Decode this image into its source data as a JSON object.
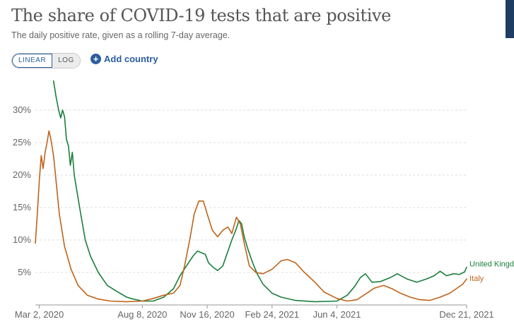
{
  "header": {
    "title": "The share of COVID-19 tests that are positive",
    "subtitle": "The daily positive rate, given as a rolling 7-day average."
  },
  "controls": {
    "linear_label": "LINEAR",
    "log_label": "LOG",
    "active_scale": "linear",
    "add_country_label": "Add country",
    "add_country_icon": "plus-circle-icon"
  },
  "colors": {
    "uk": "#1a7f3c",
    "italy": "#c0631a",
    "grid": "#dddddd",
    "accent": "#2a5e9e"
  },
  "chart_data": {
    "type": "line",
    "title": "The share of COVID-19 tests that are positive",
    "subtitle": "The daily positive rate, given as a rolling 7-day average.",
    "xlabel": "",
    "ylabel": "",
    "x_range": [
      "2020-02-25",
      "2021-12-21"
    ],
    "ylim": [
      0,
      35
    ],
    "y_ticks": [
      5,
      10,
      15,
      20,
      25,
      30
    ],
    "y_tick_labels": [
      "5%",
      "10%",
      "15%",
      "20%",
      "25%",
      "30%"
    ],
    "x_ticks": [
      "2020-03-02",
      "2020-08-08",
      "2020-11-16",
      "2021-02-24",
      "2021-06-04",
      "2021-12-21"
    ],
    "x_tick_labels": [
      "Mar 2, 2020",
      "Aug 8, 2020",
      "Nov 16, 2020",
      "Feb 24, 2021",
      "Jun 4, 2021",
      "Dec 21, 2021"
    ],
    "grid": true,
    "legend": "right-end labels",
    "series": [
      {
        "name": "United Kingdom",
        "color": "#1a7f3c",
        "points": [
          [
            "2020-03-24",
            34.5
          ],
          [
            "2020-03-28",
            32.0
          ],
          [
            "2020-04-01",
            30.0
          ],
          [
            "2020-04-04",
            28.8
          ],
          [
            "2020-04-07",
            30.0
          ],
          [
            "2020-04-10",
            29.0
          ],
          [
            "2020-04-13",
            25.5
          ],
          [
            "2020-04-16",
            24.5
          ],
          [
            "2020-04-19",
            21.5
          ],
          [
            "2020-04-22",
            23.5
          ],
          [
            "2020-04-25",
            20.0
          ],
          [
            "2020-04-30",
            17.0
          ],
          [
            "2020-05-05",
            14.0
          ],
          [
            "2020-05-12",
            10.0
          ],
          [
            "2020-05-20",
            7.5
          ],
          [
            "2020-06-01",
            5.0
          ],
          [
            "2020-06-15",
            3.0
          ],
          [
            "2020-07-01",
            2.0
          ],
          [
            "2020-07-15",
            1.2
          ],
          [
            "2020-07-25",
            0.9
          ],
          [
            "2020-08-08",
            0.6
          ],
          [
            "2020-08-25",
            0.6
          ],
          [
            "2020-09-10",
            1.2
          ],
          [
            "2020-09-25",
            2.5
          ],
          [
            "2020-10-05",
            4.5
          ],
          [
            "2020-10-15",
            6.0
          ],
          [
            "2020-10-25",
            7.5
          ],
          [
            "2020-11-01",
            8.3
          ],
          [
            "2020-11-08",
            8.0
          ],
          [
            "2020-11-13",
            7.8
          ],
          [
            "2020-11-18",
            6.5
          ],
          [
            "2020-11-25",
            5.8
          ],
          [
            "2020-12-02",
            5.3
          ],
          [
            "2020-12-10",
            6.0
          ],
          [
            "2020-12-17",
            8.0
          ],
          [
            "2020-12-24",
            10.0
          ],
          [
            "2020-12-30",
            11.5
          ],
          [
            "2021-01-04",
            13.0
          ],
          [
            "2021-01-08",
            12.5
          ],
          [
            "2021-01-12",
            10.5
          ],
          [
            "2021-01-18",
            8.5
          ],
          [
            "2021-01-25",
            6.5
          ],
          [
            "2021-02-01",
            4.8
          ],
          [
            "2021-02-10",
            3.2
          ],
          [
            "2021-02-24",
            1.8
          ],
          [
            "2021-03-10",
            1.2
          ],
          [
            "2021-04-01",
            0.7
          ],
          [
            "2021-05-01",
            0.5
          ],
          [
            "2021-06-04",
            0.6
          ],
          [
            "2021-06-20",
            1.5
          ],
          [
            "2021-07-01",
            2.8
          ],
          [
            "2021-07-10",
            4.2
          ],
          [
            "2021-07-18",
            4.8
          ],
          [
            "2021-07-28",
            3.5
          ],
          [
            "2021-08-10",
            3.6
          ],
          [
            "2021-08-25",
            4.2
          ],
          [
            "2021-09-05",
            4.8
          ],
          [
            "2021-09-20",
            4.0
          ],
          [
            "2021-10-05",
            3.5
          ],
          [
            "2021-10-20",
            4.0
          ],
          [
            "2021-11-01",
            4.5
          ],
          [
            "2021-11-10",
            5.2
          ],
          [
            "2021-11-20",
            4.5
          ],
          [
            "2021-12-01",
            4.8
          ],
          [
            "2021-12-10",
            4.7
          ],
          [
            "2021-12-18",
            5.1
          ],
          [
            "2021-12-21",
            5.8
          ]
        ]
      },
      {
        "name": "Italy",
        "color": "#c0631a",
        "points": [
          [
            "2020-02-25",
            9.5
          ],
          [
            "2020-02-28",
            14.0
          ],
          [
            "2020-03-02",
            19.0
          ],
          [
            "2020-03-05",
            23.0
          ],
          [
            "2020-03-08",
            21.0
          ],
          [
            "2020-03-11",
            23.5
          ],
          [
            "2020-03-14",
            25.0
          ],
          [
            "2020-03-17",
            26.8
          ],
          [
            "2020-03-20",
            25.5
          ],
          [
            "2020-03-24",
            23.0
          ],
          [
            "2020-03-28",
            19.0
          ],
          [
            "2020-04-02",
            14.0
          ],
          [
            "2020-04-10",
            9.0
          ],
          [
            "2020-04-20",
            5.5
          ],
          [
            "2020-05-01",
            3.0
          ],
          [
            "2020-05-15",
            1.5
          ],
          [
            "2020-06-01",
            0.9
          ],
          [
            "2020-06-20",
            0.6
          ],
          [
            "2020-07-15",
            0.5
          ],
          [
            "2020-08-08",
            0.6
          ],
          [
            "2020-08-25",
            1.0
          ],
          [
            "2020-09-10",
            1.5
          ],
          [
            "2020-09-25",
            1.8
          ],
          [
            "2020-10-05",
            3.0
          ],
          [
            "2020-10-12",
            6.0
          ],
          [
            "2020-10-20",
            10.0
          ],
          [
            "2020-10-27",
            14.0
          ],
          [
            "2020-11-03",
            16.0
          ],
          [
            "2020-11-10",
            16.0
          ],
          [
            "2020-11-16",
            14.0
          ],
          [
            "2020-11-24",
            11.5
          ],
          [
            "2020-12-02",
            10.5
          ],
          [
            "2020-12-10",
            11.5
          ],
          [
            "2020-12-18",
            12.0
          ],
          [
            "2020-12-24",
            11.0
          ],
          [
            "2020-12-31",
            13.5
          ],
          [
            "2021-01-06",
            12.5
          ],
          [
            "2021-01-12",
            9.5
          ],
          [
            "2021-01-20",
            6.0
          ],
          [
            "2021-01-30",
            5.0
          ],
          [
            "2021-02-10",
            4.8
          ],
          [
            "2021-02-24",
            5.5
          ],
          [
            "2021-03-10",
            6.8
          ],
          [
            "2021-03-20",
            7.0
          ],
          [
            "2021-04-01",
            6.5
          ],
          [
            "2021-04-15",
            5.0
          ],
          [
            "2021-05-01",
            3.5
          ],
          [
            "2021-05-15",
            2.0
          ],
          [
            "2021-06-04",
            1.0
          ],
          [
            "2021-06-20",
            0.6
          ],
          [
            "2021-07-05",
            0.8
          ],
          [
            "2021-07-20",
            1.8
          ],
          [
            "2021-08-01",
            2.6
          ],
          [
            "2021-08-15",
            3.0
          ],
          [
            "2021-08-28",
            2.5
          ],
          [
            "2021-09-10",
            1.8
          ],
          [
            "2021-09-25",
            1.2
          ],
          [
            "2021-10-10",
            0.8
          ],
          [
            "2021-10-25",
            0.7
          ],
          [
            "2021-11-10",
            1.2
          ],
          [
            "2021-11-25",
            1.8
          ],
          [
            "2021-12-05",
            2.5
          ],
          [
            "2021-12-15",
            3.2
          ],
          [
            "2021-12-21",
            4.0
          ]
        ]
      }
    ]
  }
}
